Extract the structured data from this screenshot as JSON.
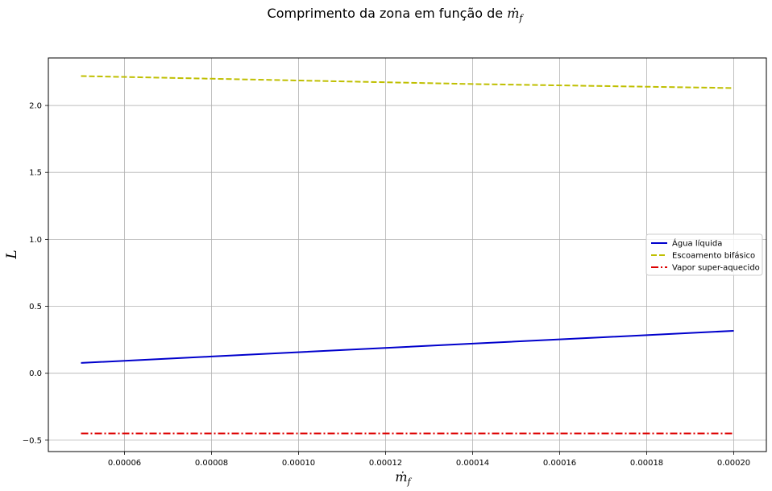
{
  "chart_data": {
    "type": "line",
    "title": "Comprimento da zona em função de ṁf",
    "title_parts": {
      "text": "Comprimento da zona em função de ",
      "symbol": "ṁ",
      "subscript": "f"
    },
    "xlabel": {
      "symbol": "ṁ",
      "subscript": "f"
    },
    "ylabel": "L",
    "xlim": [
      4.25e-05,
      0.0002075
    ],
    "ylim": [
      -0.585,
      2.355
    ],
    "x_ticks": [
      6e-05,
      8e-05,
      0.0001,
      0.00012,
      0.00014,
      0.00016,
      0.00018,
      0.0002
    ],
    "x_tick_labels": [
      "0.00006",
      "0.00008",
      "0.00010",
      "0.00012",
      "0.00014",
      "0.00016",
      "0.00018",
      "0.00020"
    ],
    "y_ticks": [
      -0.5,
      0.0,
      0.5,
      1.0,
      1.5,
      2.0
    ],
    "y_tick_labels": [
      "−0.5",
      "0.0",
      "0.5",
      "1.0",
      "1.5",
      "2.0"
    ],
    "grid": true,
    "legend_position": "center-right",
    "x": [
      5e-05,
      8e-05,
      0.00011,
      0.00014,
      0.00017,
      0.0002
    ],
    "series": [
      {
        "name": "Água líquida",
        "color": "#0000cc",
        "dash": "solid",
        "values": [
          0.077,
          0.125,
          0.173,
          0.221,
          0.269,
          0.317
        ]
      },
      {
        "name": "Escoamento bifásico",
        "color": "#bfbf00",
        "dash": "dashed",
        "values": [
          2.22,
          2.2,
          2.18,
          2.16,
          2.145,
          2.13
        ]
      },
      {
        "name": "Vapor super-aquecido",
        "color": "#dd0000",
        "dash": "dashdot",
        "values": [
          -0.45,
          -0.45,
          -0.45,
          -0.45,
          -0.45,
          -0.45
        ]
      }
    ]
  }
}
